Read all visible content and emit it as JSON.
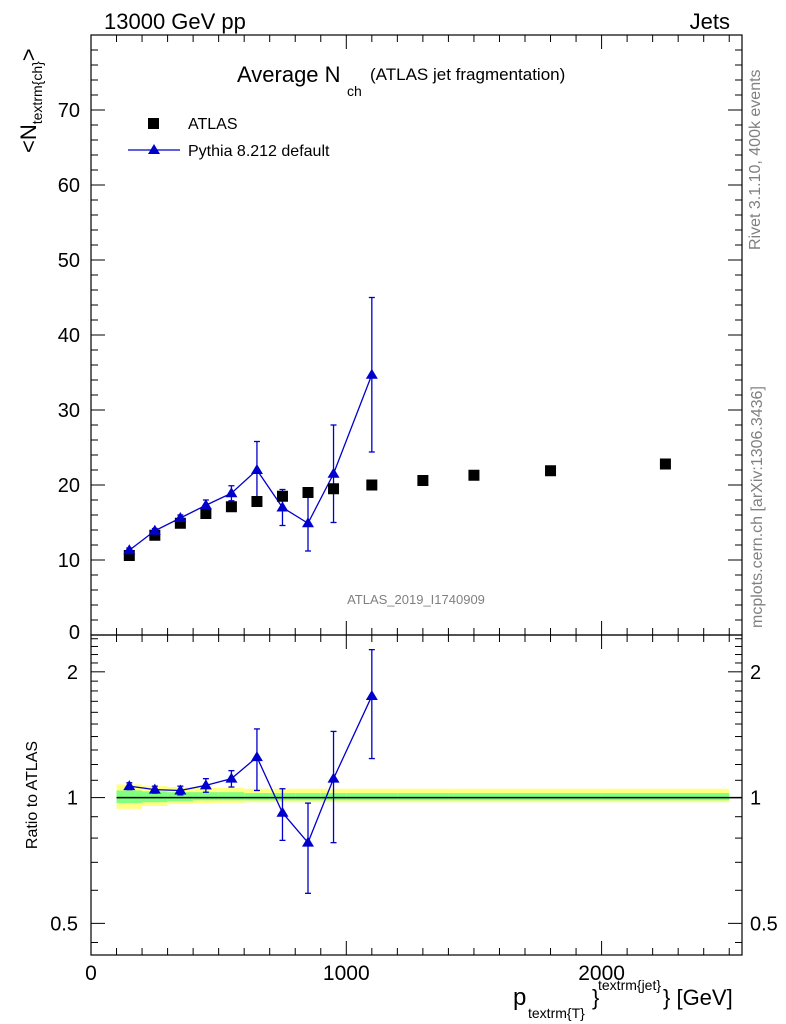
{
  "header": {
    "left": "13000 GeV pp",
    "right": "Jets"
  },
  "title": {
    "main": "Average N",
    "sub": "ch",
    "extra": "(ATLAS jet fragmentation)"
  },
  "side_labels": {
    "rivet": "Rivet 3.1.10,  400k events",
    "mcplots": "mcplots.cern.ch [arXiv:1306.3436]"
  },
  "analysis_label": "ATLAS_2019_I1740909",
  "axes": {
    "ylabel_main": {
      "pre": "<N",
      "sub": "textrm{ch}",
      "post": ">"
    },
    "ylabel_ratio": "Ratio to ATLAS",
    "xlabel": {
      "p": "p",
      "sub": "textrm{T}",
      "brace": "}",
      "sup": "textrm{jet}",
      "post": "} [GeV]"
    }
  },
  "legend": {
    "data_label": "ATLAS",
    "mc_label": "Pythia 8.212 default"
  },
  "colors": {
    "data": "#000000",
    "mc": "#0000cc",
    "band_outer": "#ffff80",
    "band_inner": "#80ff80",
    "grey_text": "#808080"
  },
  "chart_data": [
    {
      "type": "scatter",
      "panel": "main",
      "xlim": [
        0,
        2550
      ],
      "ylim": [
        0,
        80
      ],
      "xticks": [
        0,
        1000,
        2000
      ],
      "yticks": [
        0,
        10,
        20,
        30,
        40,
        50,
        60,
        70
      ],
      "ytick_labels": [
        "0",
        "10",
        "20",
        "30",
        "40",
        "50",
        "60",
        "70"
      ],
      "series": [
        {
          "name": "ATLAS",
          "marker": "square",
          "x": [
            150,
            250,
            350,
            450,
            550,
            650,
            750,
            850,
            950,
            1100,
            1300,
            1500,
            1800,
            2250
          ],
          "y": [
            10.6,
            13.3,
            14.9,
            16.2,
            17.1,
            17.8,
            18.5,
            19.0,
            19.5,
            20.0,
            20.6,
            21.3,
            21.9,
            22.8
          ]
        },
        {
          "name": "Pythia 8.212 default",
          "marker": "triangle",
          "x": [
            150,
            250,
            350,
            450,
            550,
            650,
            750,
            850,
            950,
            1100
          ],
          "y": [
            11.3,
            13.9,
            15.6,
            17.3,
            18.9,
            22.0,
            17.0,
            14.9,
            21.5,
            34.7
          ],
          "err": [
            0.3,
            0.3,
            0.4,
            0.7,
            1.0,
            3.8,
            2.4,
            3.7,
            6.5,
            10.3
          ]
        }
      ]
    },
    {
      "type": "scatter",
      "panel": "ratio",
      "xlim": [
        0,
        2550
      ],
      "ylim": [
        0.42,
        2.45
      ],
      "log_y": true,
      "xticks": [
        0,
        1000,
        2000
      ],
      "xtick_labels": [
        "0",
        "1000",
        "2000"
      ],
      "yticks": [
        0.5,
        1,
        2
      ],
      "ytick_labels": [
        "0.5",
        "1",
        "2"
      ],
      "series": [
        {
          "name": "Pythia 8.212 default / ATLAS",
          "marker": "triangle",
          "x": [
            150,
            250,
            350,
            450,
            550,
            650,
            750,
            850,
            950,
            1100
          ],
          "y": [
            1.065,
            1.045,
            1.04,
            1.07,
            1.11,
            1.25,
            0.92,
            0.78,
            1.11,
            1.75
          ],
          "err": [
            0.02,
            0.02,
            0.025,
            0.04,
            0.05,
            0.21,
            0.13,
            0.19,
            0.33,
            0.51
          ]
        }
      ],
      "band": {
        "x_edges": [
          100,
          200,
          300,
          400,
          500,
          600,
          700,
          800,
          900,
          1000,
          1200,
          1400,
          1600,
          2000,
          2500
        ],
        "outer_lo": [
          0.94,
          0.955,
          0.965,
          0.97,
          0.972,
          0.975,
          0.975,
          0.975,
          0.975,
          0.975,
          0.975,
          0.975,
          0.975,
          0.975
        ],
        "outer_hi": [
          1.075,
          1.065,
          1.06,
          1.055,
          1.055,
          1.05,
          1.05,
          1.05,
          1.05,
          1.05,
          1.05,
          1.05,
          1.05,
          1.05
        ],
        "inner_lo": [
          0.97,
          0.975,
          0.98,
          0.985,
          0.985,
          0.985,
          0.985,
          0.985,
          0.985,
          0.985,
          0.985,
          0.985,
          0.985,
          0.985
        ],
        "inner_hi": [
          1.04,
          1.035,
          1.03,
          1.03,
          1.03,
          1.025,
          1.025,
          1.025,
          1.025,
          1.025,
          1.025,
          1.025,
          1.025,
          1.025
        ]
      }
    }
  ]
}
